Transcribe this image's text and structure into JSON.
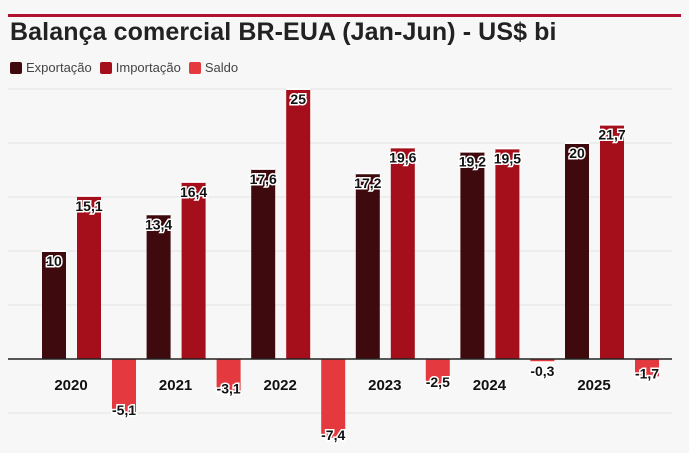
{
  "title": "Balança comercial BR-EUA (Jan-Jun) - US$ bi",
  "legend": {
    "items": [
      {
        "label": "Exportação",
        "color": "#3f0a0e"
      },
      {
        "label": "Importação",
        "color": "#a50f1b"
      },
      {
        "label": "Saldo",
        "color": "#e43a3f"
      }
    ]
  },
  "chart_data": {
    "type": "bar",
    "title": "Balança comercial BR-EUA (Jan-Jun) - US$ bi",
    "xlabel": "",
    "ylabel": "",
    "categories": [
      "2020",
      "2021",
      "2022",
      "2023",
      "2024",
      "2025"
    ],
    "ylim": [
      -8,
      25
    ],
    "grid": true,
    "legend_position": "top-left",
    "series": [
      {
        "name": "Exportação",
        "color": "#3f0a0e",
        "values": [
          10,
          13.4,
          17.6,
          17.2,
          19.2,
          20
        ],
        "labels": [
          "10",
          "13,4",
          "17,6",
          "17,2",
          "19,2",
          "20"
        ]
      },
      {
        "name": "Importação",
        "color": "#a50f1b",
        "values": [
          15.1,
          16.4,
          25,
          19.6,
          19.5,
          21.7
        ],
        "labels": [
          "15,1",
          "16,4",
          "25",
          "19,6",
          "19,5",
          "21,7"
        ]
      },
      {
        "name": "Saldo",
        "color": "#e43a3f",
        "values": [
          -5.1,
          -3.1,
          -7.4,
          -2.5,
          -0.3,
          -1.7
        ],
        "labels": [
          "-5,1",
          "-3,1",
          "-7,4",
          "-2,5",
          "-0,3",
          "-1,7"
        ]
      }
    ]
  }
}
